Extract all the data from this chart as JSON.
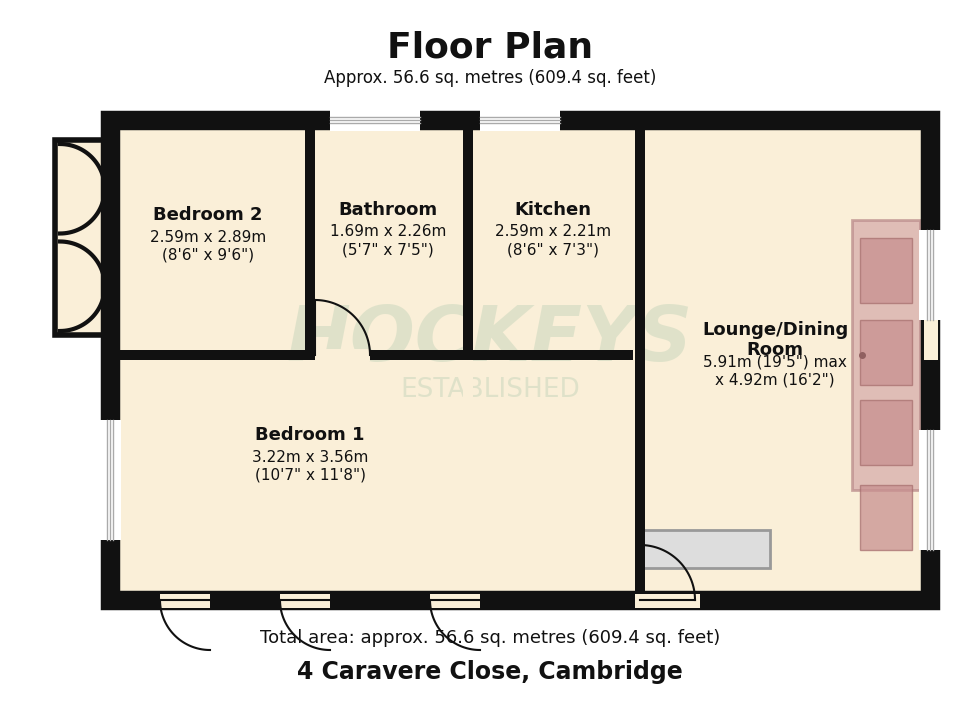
{
  "title": "Floor Plan",
  "subtitle": "Approx. 56.6 sq. metres (609.4 sq. feet)",
  "footer_line1": "Total area: approx. 56.6 sq. metres (609.4 sq. feet)",
  "footer_line2": "4 Caravere Close, Cambridge",
  "bg_color": "#ffffff",
  "floor_color": "#faefd8",
  "wall_color": "#111111",
  "watermark_color": "#c5d5bb",
  "rooms": {
    "bed2": {
      "name": "Bedroom 2",
      "dim1": "2.59m x 2.89m",
      "dim2": "(8'6\" x 9'6\")"
    },
    "bath": {
      "name": "Bathroom",
      "dim1": "1.69m x 2.26m",
      "dim2": "(5'7\" x 7'5\")"
    },
    "kit": {
      "name": "Kitchen",
      "dim1": "2.59m x 2.21m",
      "dim2": "(8'6\" x 7'3\")"
    },
    "lounge": {
      "name": "Lounge/Dining\nRoom",
      "dim1": "5.91m (19'5\") max",
      "dim2": "x 4.92m (16'2\")"
    },
    "bed1": {
      "name": "Bedroom 1",
      "dim1": "3.22m x 3.56m",
      "dim2": "(10'7\" x 11'8\")"
    }
  }
}
